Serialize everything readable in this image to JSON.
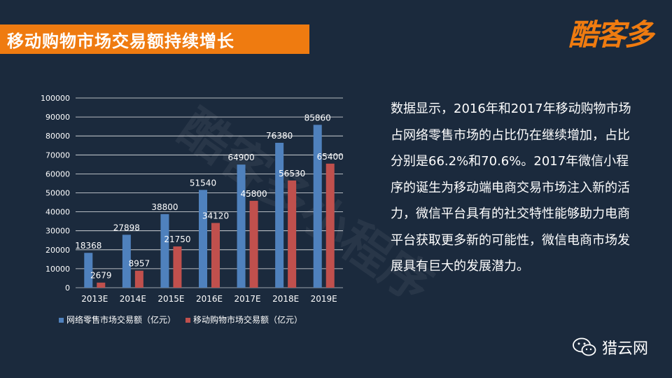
{
  "slide": {
    "title": "移动购物市场交易额持续增长",
    "logo_text": "酷客多",
    "watermark_text": "酷客多小程序",
    "body_text": "数据显示，2016年和2017年移动购物市场占网络零售市场的占比仍在继续增加，占比分别是66.2%和70.6%。2017年微信小程序的诞生为移动端电商交易市场注入新的活力，微信平台具有的社交特性能够助力电商平台获取更多新的可能性，微信电商市场发展具有巨大的发展潜力。",
    "footer_brand": "猎云网"
  },
  "colors": {
    "background": "#1b2a3d",
    "accent": "#ef7b10",
    "series1": "#4f81bd",
    "series2": "#c0504d"
  },
  "chart_data": {
    "type": "bar",
    "categories": [
      "2013E",
      "2014E",
      "2015E",
      "2016E",
      "2017E",
      "2018E",
      "2019E"
    ],
    "series": [
      {
        "name": "网络零售市场交易额（亿元）",
        "values": [
          18368,
          27898,
          38800,
          51540,
          64900,
          76380,
          85860
        ]
      },
      {
        "name": "移动购物市场交易额（亿元）",
        "values": [
          2679,
          8957,
          21750,
          34120,
          45800,
          56530,
          65400
        ]
      }
    ],
    "ylim": [
      0,
      100000
    ],
    "yticks": [
      0,
      10000,
      20000,
      30000,
      40000,
      50000,
      60000,
      70000,
      80000,
      90000,
      100000
    ],
    "grid": true,
    "legend_position": "bottom",
    "data_labels": true
  }
}
